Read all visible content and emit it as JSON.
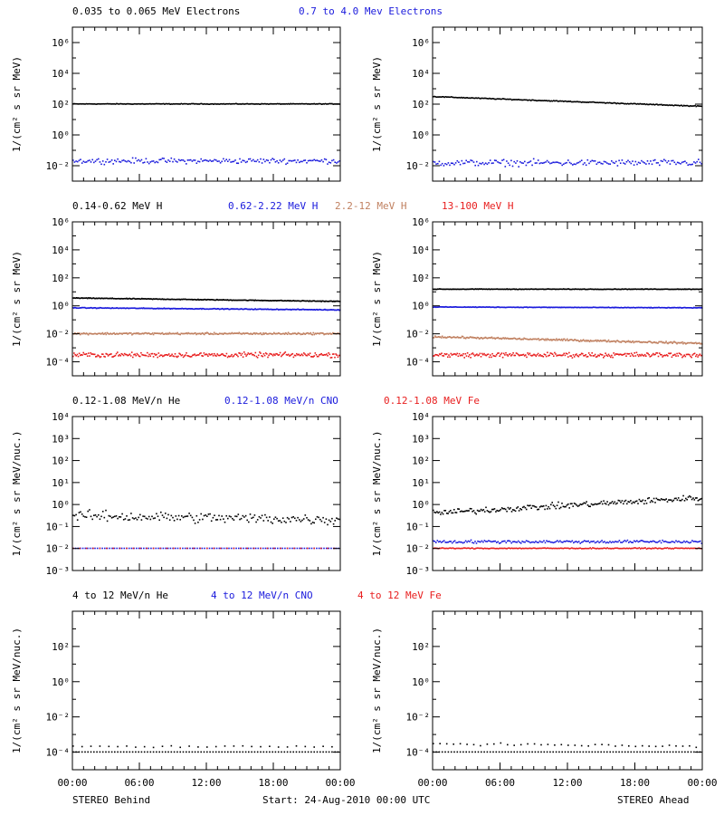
{
  "colors": {
    "black": "#000000",
    "blue": "#1a1adc",
    "tan": "#c08060",
    "red": "#e81e1e"
  },
  "footer": {
    "left": "STEREO Behind",
    "center": "Start: 24-Aug-2010 00:00 UTC",
    "right": "STEREO Ahead"
  },
  "chart_data": [
    {
      "type": "scatter",
      "scale": "log",
      "ylim": [
        0.001,
        10000000
      ],
      "ytick_exponents": [
        -2,
        0,
        2,
        4,
        6
      ],
      "ylabel": "1/(cm² s sr MeV)",
      "xlim": [
        0,
        24
      ],
      "xtick_hours": [
        0,
        6,
        12,
        18,
        24
      ],
      "legend": [
        {
          "text": "0.035 to 0.065 MeV Electrons",
          "color": "black"
        },
        {
          "text": "0.7 to 4.0 Mev Electrons",
          "color": "blue"
        }
      ],
      "panels": {
        "behind": {
          "series": [
            {
              "color": "black",
              "start": 100,
              "end": 100,
              "noise": 0.03,
              "density": 240
            },
            {
              "color": "blue",
              "start": 0.02,
              "end": 0.02,
              "noise": 0.25,
              "density": 180
            }
          ]
        },
        "ahead": {
          "series": [
            {
              "color": "black",
              "start": 300,
              "end": 70,
              "noise": 0.04,
              "density": 240
            },
            {
              "color": "blue",
              "start": 0.015,
              "end": 0.015,
              "noise": 0.3,
              "density": 180
            }
          ]
        }
      }
    },
    {
      "type": "scatter",
      "scale": "log",
      "ylim": [
        1e-05,
        1000000
      ],
      "ytick_exponents": [
        -4,
        -2,
        0,
        2,
        4,
        6
      ],
      "ylabel": "1/(cm² s sr MeV)",
      "xlim": [
        0,
        24
      ],
      "xtick_hours": [
        0,
        6,
        12,
        18,
        24
      ],
      "legend": [
        {
          "text": "0.14-0.62 MeV H",
          "color": "black"
        },
        {
          "text": "0.62-2.22 MeV H",
          "color": "blue"
        },
        {
          "text": "2.2-12 MeV H",
          "color": "tan"
        },
        {
          "text": "13-100 MeV H",
          "color": "red"
        }
      ],
      "panels": {
        "behind": {
          "series": [
            {
              "color": "black",
              "start": 3.5,
              "end": 2.0,
              "noise": 0.04,
              "density": 300
            },
            {
              "color": "blue",
              "start": 0.7,
              "end": 0.5,
              "noise": 0.04,
              "density": 300
            },
            {
              "color": "tan",
              "start": 0.01,
              "end": 0.01,
              "noise": 0.1,
              "density": 300
            },
            {
              "color": "red",
              "start": 0.0003,
              "end": 0.0003,
              "noise": 0.25,
              "density": 260
            }
          ]
        },
        "ahead": {
          "series": [
            {
              "color": "black",
              "start": 15,
              "end": 15,
              "noise": 0.03,
              "density": 300
            },
            {
              "color": "blue",
              "start": 0.8,
              "end": 0.7,
              "noise": 0.03,
              "density": 300
            },
            {
              "color": "tan",
              "start": 0.006,
              "end": 0.002,
              "noise": 0.1,
              "density": 300
            },
            {
              "color": "red",
              "start": 0.0003,
              "end": 0.0003,
              "noise": 0.25,
              "density": 260
            }
          ]
        }
      }
    },
    {
      "type": "scatter",
      "scale": "log",
      "ylim": [
        0.001,
        10000
      ],
      "ytick_exponents": [
        -3,
        -2,
        -1,
        0,
        1,
        2,
        3,
        4
      ],
      "ylabel": "1/(cm² s sr MeV/nuc.)",
      "xlim": [
        0,
        24
      ],
      "xtick_hours": [
        0,
        6,
        12,
        18,
        24
      ],
      "legend": [
        {
          "text": "0.12-1.08 MeV/n He",
          "color": "black"
        },
        {
          "text": "0.12-1.08 MeV/n CNO",
          "color": "blue"
        },
        {
          "text": "0.12-1.08 MeV Fe",
          "color": "red"
        }
      ],
      "panels": {
        "behind": {
          "series": [
            {
              "color": "black",
              "start": 0.3,
              "end": 0.2,
              "noise": 0.35,
              "density": 180
            },
            {
              "color": "blue",
              "start": 0.01,
              "end": 0.01,
              "noise": 0.0,
              "density": 110
            },
            {
              "color": "red",
              "start": 0.01,
              "end": 0.01,
              "noise": 0.0,
              "density": 40
            }
          ]
        },
        "ahead": {
          "series": [
            {
              "color": "black",
              "start": 0.4,
              "end": 2.0,
              "noise": 0.2,
              "density": 220
            },
            {
              "color": "blue",
              "start": 0.02,
              "end": 0.02,
              "noise": 0.1,
              "density": 200
            },
            {
              "color": "red",
              "start": 0.01,
              "end": 0.01,
              "noise": 0.03,
              "density": 220
            }
          ]
        }
      }
    },
    {
      "type": "scatter",
      "scale": "log",
      "ylim": [
        1e-05,
        10000
      ],
      "ytick_exponents": [
        -4,
        -2,
        0,
        2
      ],
      "ylabel": "1/(cm² s sr MeV/nuc.)",
      "xlim": [
        0,
        24
      ],
      "xtick_hours": [
        0,
        6,
        12,
        18,
        24
      ],
      "xtick_labels": [
        "00:00",
        "06:00",
        "12:00",
        "18:00",
        "00:00"
      ],
      "legend": [
        {
          "text": "4 to 12 MeV/n He",
          "color": "black"
        },
        {
          "text": "4 to 12 MeV/n CNO",
          "color": "blue"
        },
        {
          "text": "4 to 12 MeV Fe",
          "color": "red"
        }
      ],
      "panels": {
        "behind": {
          "series": [
            {
              "color": "black",
              "start": 0.0001,
              "end": 0.0001,
              "noise": 0.0,
              "density": 90
            },
            {
              "color": "black",
              "start": 0.0002,
              "end": 0.0002,
              "noise": 0.08,
              "density": 30
            }
          ]
        },
        "ahead": {
          "series": [
            {
              "color": "black",
              "start": 0.0001,
              "end": 0.0001,
              "noise": 0.0,
              "density": 90
            },
            {
              "color": "black",
              "start": 0.0003,
              "end": 0.0002,
              "noise": 0.1,
              "density": 40
            }
          ]
        }
      }
    }
  ]
}
